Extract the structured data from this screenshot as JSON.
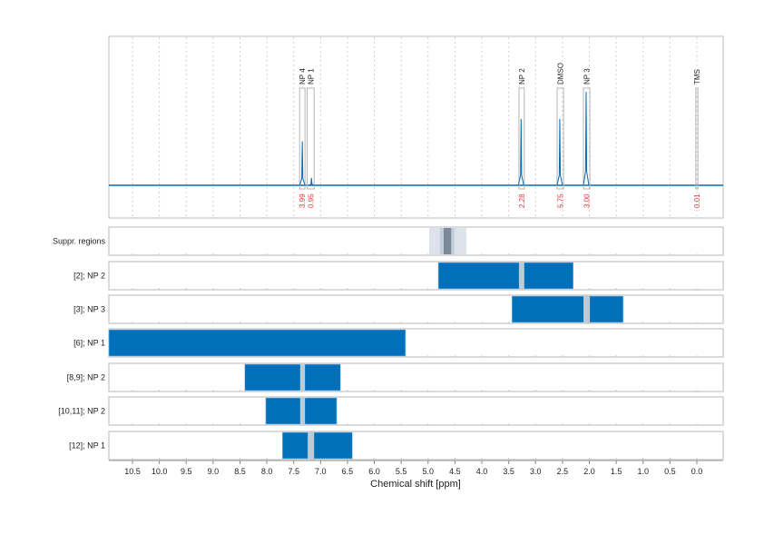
{
  "chart_data": {
    "type": "nmr-spectrum-with-region-bars",
    "xlabel": "Chemical shift [ppm]",
    "xlim": [
      10.94,
      -0.49
    ],
    "x_reversed": true,
    "xticks": [
      10.5,
      10.0,
      9.5,
      9.0,
      8.5,
      8.0,
      7.5,
      7.0,
      6.5,
      6.0,
      5.5,
      5.0,
      4.5,
      4.0,
      3.5,
      3.0,
      2.5,
      2.0,
      1.5,
      1.0,
      0.5,
      0.0
    ],
    "xtick_labels": [
      "10.5",
      "10.0",
      "9.5",
      "9.0",
      "8.5",
      "8.0",
      "7.5",
      "7.0",
      "6.5",
      "6.0",
      "5.5",
      "5.0",
      "4.5",
      "4.0",
      "3.5",
      "3.0",
      "2.5",
      "2.0",
      "1.5",
      "1.0",
      "0.5",
      "0.0"
    ],
    "grid": true,
    "spectrum": {
      "color": "#0a6bb0",
      "peaks": [
        {
          "label": "NP 4",
          "ppm": 7.34,
          "box": [
            7.39,
            7.29
          ],
          "relative_intensity": 0.47,
          "integral": "3.99"
        },
        {
          "label": "NP 1",
          "ppm": 7.17,
          "box": [
            7.25,
            7.12
          ],
          "relative_intensity": 0.08,
          "integral": "0.95"
        },
        {
          "label": "NP 2",
          "ppm": 3.27,
          "box": [
            3.31,
            3.21
          ],
          "relative_intensity": 0.71,
          "integral": "2.28"
        },
        {
          "label": "DMSO",
          "ppm": 2.55,
          "box": [
            2.6,
            2.48
          ],
          "relative_intensity": 0.71,
          "integral": "5.75"
        },
        {
          "label": "NP 3",
          "ppm": 2.06,
          "box": [
            2.11,
            1.99
          ],
          "relative_intensity": 1.0,
          "integral": "3.00"
        },
        {
          "label": "TMS",
          "ppm": 0.0,
          "box": [
            0.02,
            -0.02
          ],
          "relative_intensity": 0.0,
          "integral": "0.01"
        }
      ],
      "integral_color": "#e8333a"
    },
    "rows": [
      {
        "label": "Suppr. regions",
        "type": "suppression",
        "bands": [
          {
            "range": [
              4.98,
              4.29
            ],
            "color": "#dce3ea"
          },
          {
            "range": [
              4.78,
              4.51
            ],
            "color": "#c4ced8"
          },
          {
            "range": [
              4.71,
              4.57
            ],
            "color": "#7a8a99"
          }
        ]
      },
      {
        "label": "[2]; NP 2",
        "range": [
          4.81,
          2.3
        ],
        "excluded": [
          3.31,
          3.21
        ]
      },
      {
        "label": "[3]; NP 3",
        "range": [
          3.44,
          1.37
        ],
        "excluded": [
          2.11,
          1.99
        ]
      },
      {
        "label": "[6]; NP 1",
        "range": [
          11.5,
          5.42
        ],
        "excluded": null
      },
      {
        "label": "[8,9]; NP 2",
        "range": [
          8.41,
          6.63
        ],
        "excluded": [
          7.38,
          7.29
        ]
      },
      {
        "label": "[10,11]; NP 2",
        "range": [
          8.02,
          6.7
        ],
        "excluded": [
          7.38,
          7.29
        ]
      },
      {
        "label": "[12]; NP 1",
        "range": [
          7.71,
          6.41
        ],
        "excluded": [
          7.24,
          7.12
        ]
      }
    ],
    "bar_color": "#0070bb",
    "excluded_color": "#bccbd6"
  }
}
